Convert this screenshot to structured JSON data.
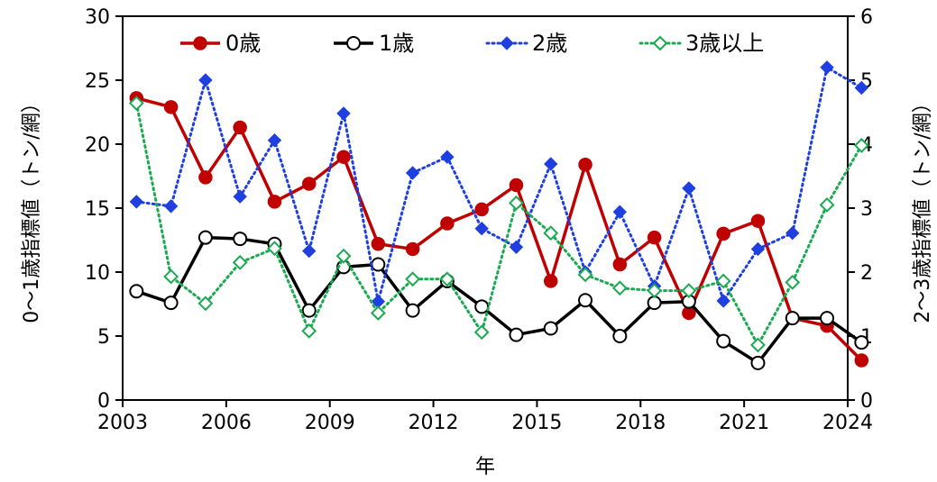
{
  "chart_data": {
    "type": "line",
    "xlabel": "年",
    "ylabel_left": "0～1歳指標値（トン/網）",
    "ylabel_right": "2～3歳指標値（トン/網）",
    "xlim": [
      2003,
      2024
    ],
    "ylim_left": [
      0,
      30
    ],
    "ylim_right": [
      0,
      6
    ],
    "x_ticks": [
      2003,
      2006,
      2009,
      2012,
      2015,
      2018,
      2021,
      2024
    ],
    "y_ticks_left": [
      0,
      5,
      10,
      15,
      20,
      25,
      30
    ],
    "y_ticks_right": [
      0,
      1,
      2,
      3,
      4,
      5,
      6
    ],
    "grid": false,
    "legend_position": "top",
    "colors": {
      "age0": "#C00000",
      "age1": "#000000",
      "age2": "#1F3FE0",
      "age3": "#1AAA50"
    },
    "series": [
      {
        "name": "0歳",
        "axis": "left",
        "style": "solid",
        "marker": "circle-filled",
        "color": "#C00000",
        "x": [
          2003.4,
          2004.4,
          2005.4,
          2006.4,
          2007.4,
          2008.4,
          2009.4,
          2010.4,
          2011.4,
          2012.4,
          2013.4,
          2014.4,
          2015.4,
          2016.4,
          2017.4,
          2018.4,
          2019.4,
          2020.4,
          2021.4,
          2022.4,
          2023.4,
          2024.4
        ],
        "y": [
          23.6,
          22.9,
          17.4,
          21.3,
          15.5,
          16.9,
          19.0,
          12.2,
          11.8,
          13.8,
          14.9,
          16.8,
          9.3,
          18.4,
          10.6,
          12.7,
          6.8,
          13.0,
          14.0,
          6.4,
          5.8,
          3.1
        ]
      },
      {
        "name": "1歳",
        "axis": "left",
        "style": "solid",
        "marker": "circle-open",
        "color": "#000000",
        "x": [
          2003.4,
          2004.4,
          2005.4,
          2006.4,
          2007.4,
          2008.4,
          2009.4,
          2010.4,
          2011.4,
          2012.4,
          2013.4,
          2014.4,
          2015.4,
          2016.4,
          2017.4,
          2018.4,
          2019.4,
          2020.4,
          2021.4,
          2022.4,
          2023.4,
          2024.4
        ],
        "y": [
          8.5,
          7.6,
          12.7,
          12.6,
          12.2,
          7.0,
          10.4,
          10.6,
          7.0,
          9.3,
          7.3,
          5.1,
          5.6,
          7.8,
          5.0,
          7.6,
          7.7,
          4.6,
          2.9,
          6.4,
          6.4,
          4.5
        ]
      },
      {
        "name": "2歳",
        "axis": "right",
        "style": "dotted",
        "marker": "diamond-filled",
        "color": "#1F3FE0",
        "x": [
          2003.4,
          2004.4,
          2005.4,
          2006.4,
          2007.4,
          2008.4,
          2009.4,
          2010.4,
          2011.4,
          2012.4,
          2013.4,
          2014.4,
          2015.4,
          2016.4,
          2017.4,
          2018.4,
          2019.4,
          2020.4,
          2021.4,
          2022.4,
          2023.4,
          2024.4
        ],
        "y": [
          3.1,
          3.03,
          5.0,
          3.18,
          4.06,
          2.33,
          4.48,
          1.54,
          3.55,
          3.8,
          2.68,
          2.39,
          3.69,
          2.0,
          2.94,
          1.78,
          3.31,
          1.55,
          2.36,
          2.61,
          5.2,
          4.88
        ]
      },
      {
        "name": "3歳以上",
        "axis": "right",
        "style": "dotted",
        "marker": "diamond-open",
        "color": "#1AAA50",
        "x": [
          2003.4,
          2004.4,
          2005.4,
          2006.4,
          2007.4,
          2008.4,
          2009.4,
          2010.4,
          2011.4,
          2012.4,
          2013.4,
          2014.4,
          2015.4,
          2016.4,
          2017.4,
          2018.4,
          2019.4,
          2020.4,
          2021.4,
          2022.4,
          2023.4,
          2024.4
        ],
        "y": [
          4.64,
          1.93,
          1.51,
          2.15,
          2.37,
          1.08,
          2.25,
          1.36,
          1.89,
          1.89,
          1.06,
          3.08,
          2.61,
          1.96,
          1.75,
          1.71,
          1.71,
          1.86,
          0.86,
          1.84,
          3.05,
          3.98
        ]
      }
    ]
  }
}
